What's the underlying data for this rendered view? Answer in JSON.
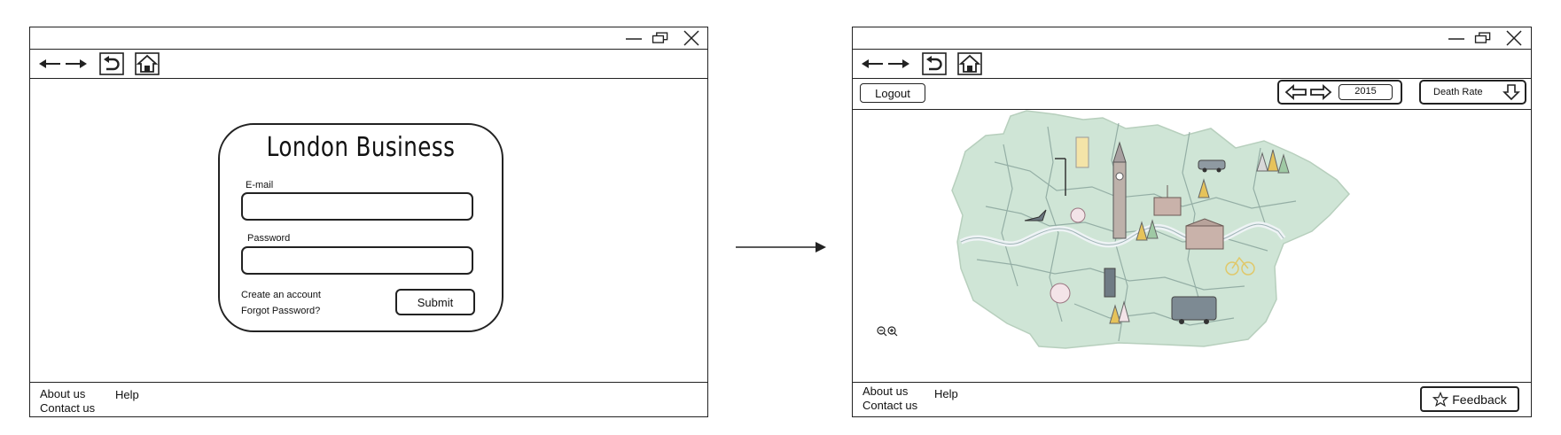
{
  "login_screen": {
    "card": {
      "title": "London Business",
      "email_label": "E-mail",
      "email_value": "",
      "password_label": "Password",
      "password_value": "",
      "create_account_link": "Create an account",
      "forgot_password_link": "Forgot Password?",
      "submit_label": "Submit"
    },
    "footer": {
      "about_us": "About us",
      "contact_us": "Contact us",
      "help": "Help"
    }
  },
  "map_screen": {
    "header": {
      "logout_label": "Logout",
      "year_value": "2015",
      "metric_selected": "Death Rate"
    },
    "footer": {
      "about_us": "About us",
      "contact_us": "Contact us",
      "help": "Help",
      "feedback_label": "Feedback"
    }
  },
  "icons": {
    "back": "arrow-left-icon",
    "forward": "arrow-right-icon",
    "refresh": "refresh-icon",
    "home": "home-icon",
    "minimize": "minimize-icon",
    "restore": "restore-icon",
    "close": "close-icon",
    "zoom_out": "zoom-out-icon",
    "zoom_in": "zoom-in-icon",
    "star": "star-icon",
    "dropdown": "arrow-down-icon"
  },
  "colors": {
    "map_fill": "#cfe5d6",
    "river": "#eef3f5",
    "outline": "#222222"
  }
}
